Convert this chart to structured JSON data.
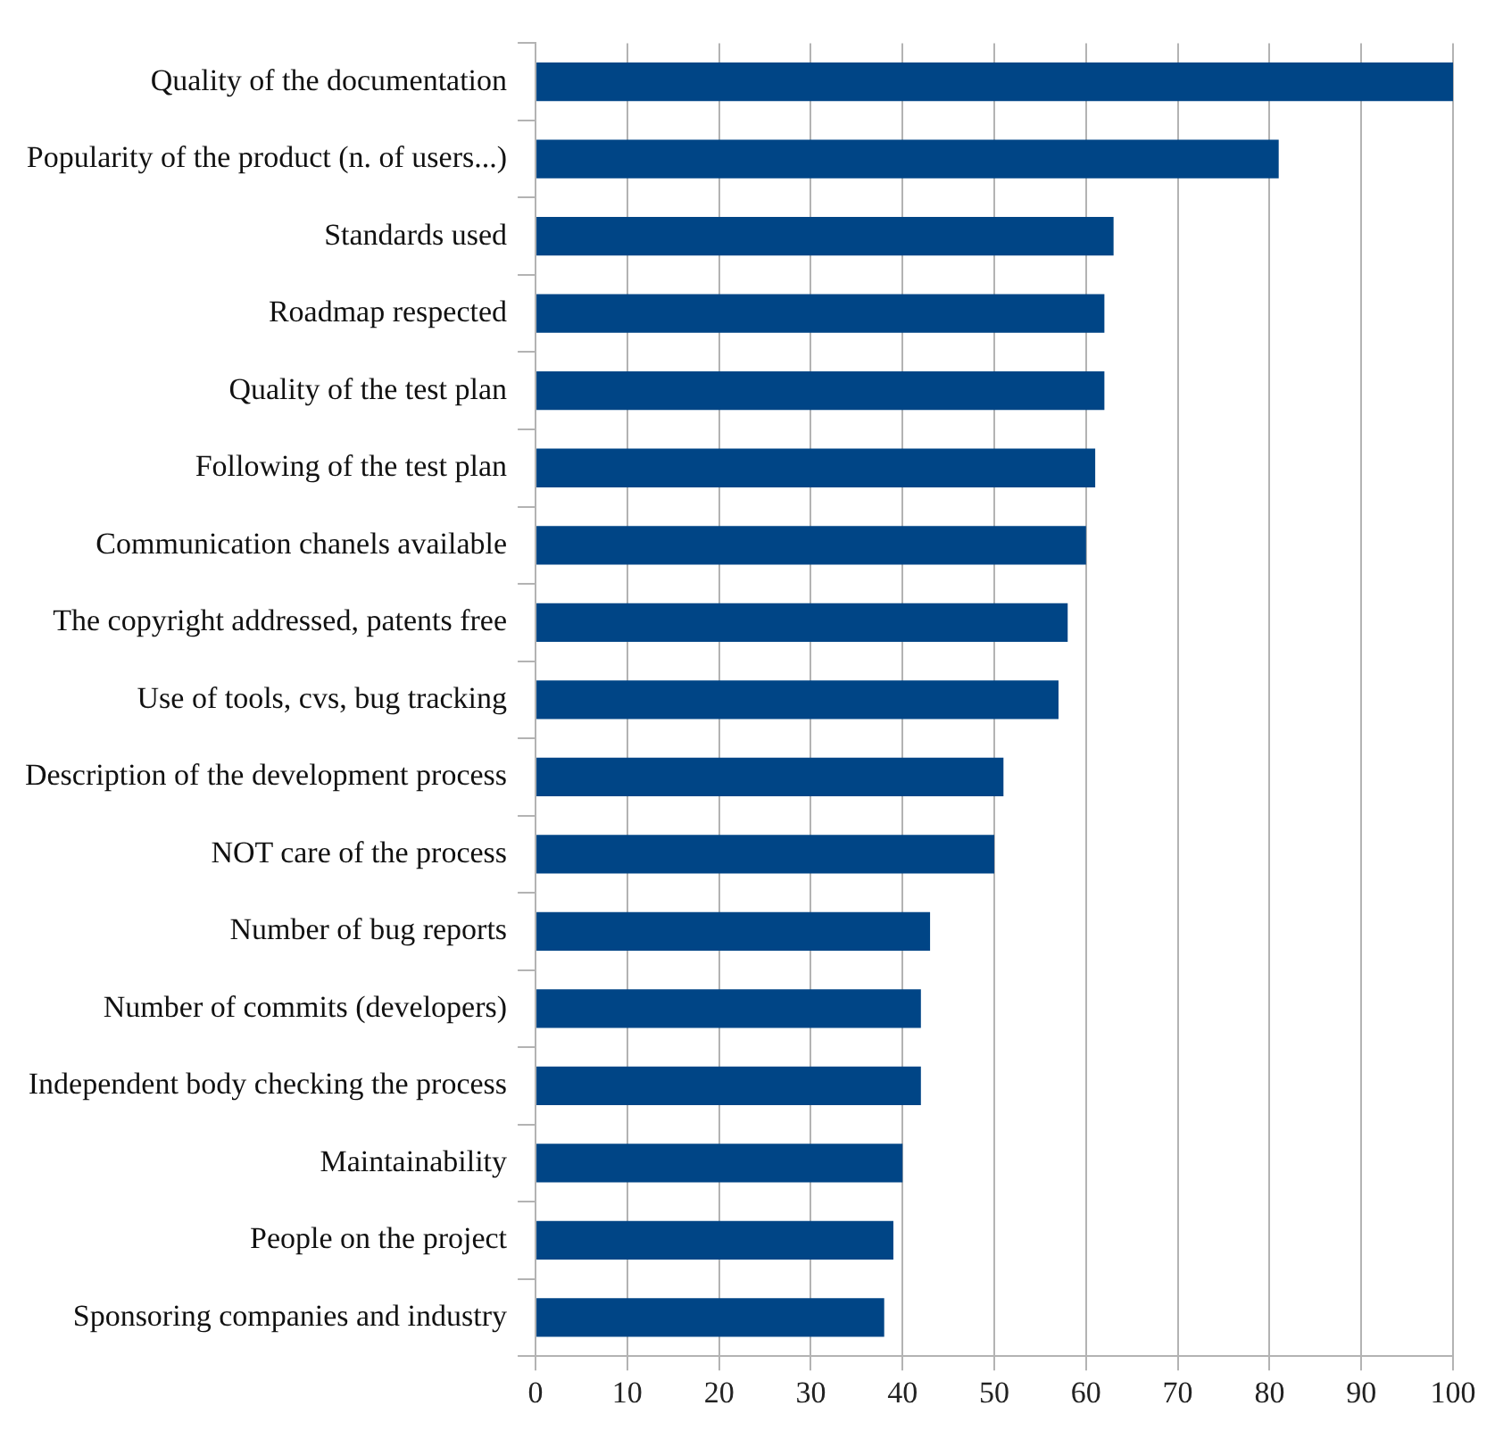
{
  "chart_data": {
    "type": "bar",
    "orientation": "horizontal",
    "categories": [
      "Quality of the documentation",
      "Popularity of the product (n. of users...)",
      "Standards used",
      "Roadmap respected",
      "Quality of the test plan",
      "Following of the test plan",
      "Communication chanels available",
      "The copyright addressed, patents free",
      "Use of tools, cvs, bug tracking",
      "Description of the development process",
      "NOT care of the process",
      "Number of bug reports",
      "Number of commits (developers)",
      "Independent body checking the process",
      "Maintainability",
      "People on the project",
      "Sponsoring companies and industry"
    ],
    "values": [
      100,
      81,
      63,
      62,
      62,
      61,
      60,
      58,
      57,
      51,
      50,
      43,
      42,
      42,
      40,
      39,
      38
    ],
    "color": "#004586",
    "xlim": [
      0,
      100
    ],
    "xticks": [
      0,
      10,
      20,
      30,
      40,
      50,
      60,
      70,
      80,
      90,
      100
    ],
    "grid": "x",
    "legend": false
  }
}
